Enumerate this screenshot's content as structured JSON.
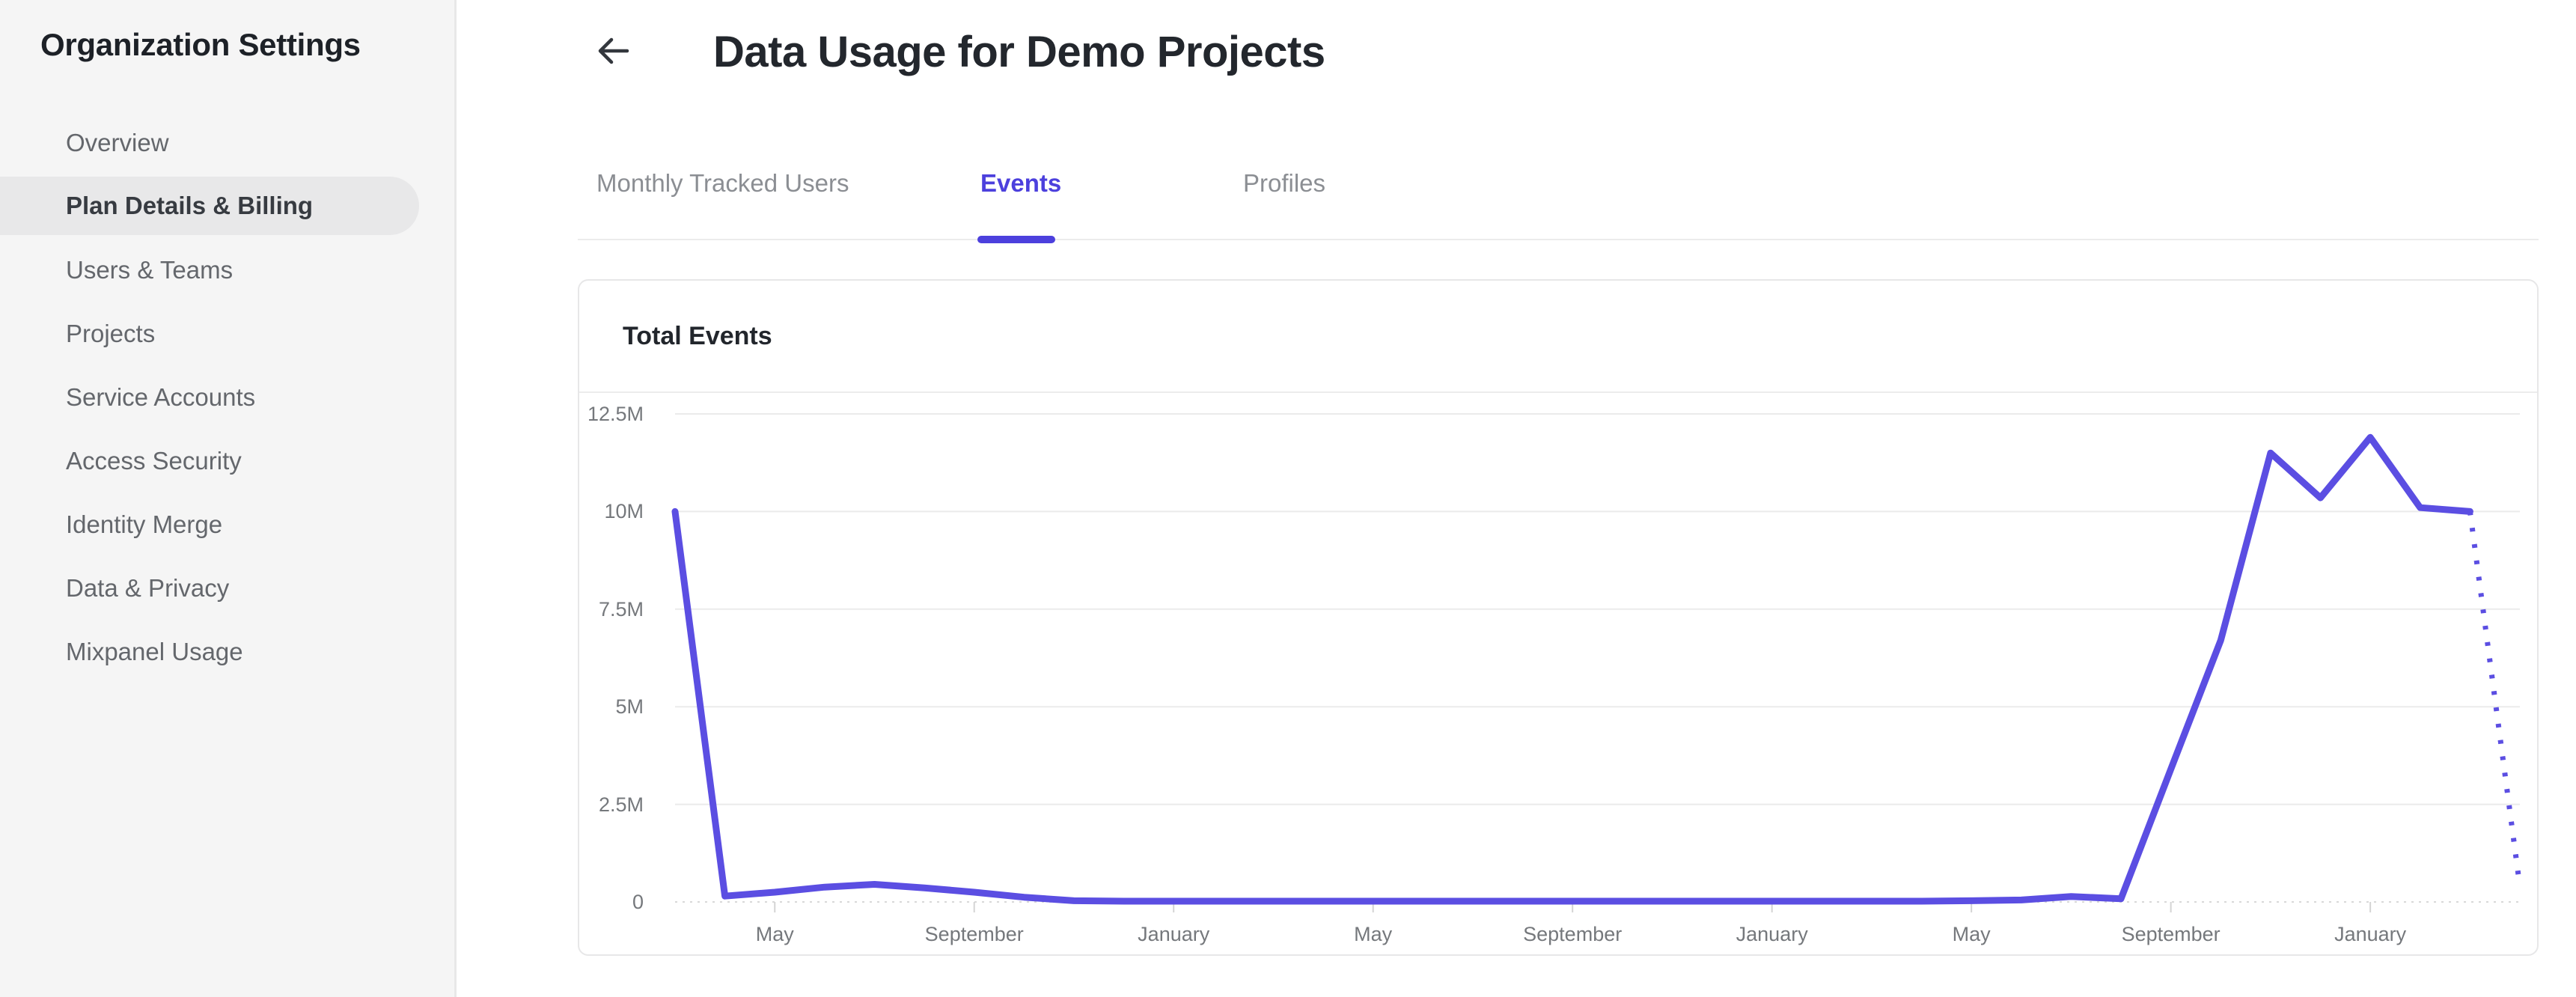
{
  "sidebar": {
    "title": "Organization Settings",
    "items": [
      {
        "label": "Overview",
        "selected": false
      },
      {
        "label": "Plan Details & Billing",
        "selected": true
      },
      {
        "label": "Users & Teams",
        "selected": false
      },
      {
        "label": "Projects",
        "selected": false
      },
      {
        "label": "Service Accounts",
        "selected": false
      },
      {
        "label": "Access Security",
        "selected": false
      },
      {
        "label": "Identity Merge",
        "selected": false
      },
      {
        "label": "Data & Privacy",
        "selected": false
      },
      {
        "label": "Mixpanel Usage",
        "selected": false
      }
    ]
  },
  "header": {
    "back_icon": "left-arrow",
    "title": "Data Usage for Demo Projects"
  },
  "tabs": {
    "items": [
      {
        "label": "Monthly Tracked Users",
        "active": false
      },
      {
        "label": "Events",
        "active": true
      },
      {
        "label": "Profiles",
        "active": false
      }
    ]
  },
  "card": {
    "title": "Total Events"
  },
  "colors": {
    "accent_purple": "#4c40dd",
    "line_purple": "#5b4ee2",
    "gridline": "#ebebeb",
    "zero_line": "#d8d8d8",
    "tick": "#d4d4d4",
    "axis_text": "#75787c"
  },
  "chart_data": {
    "type": "line",
    "title": "Total Events",
    "series_name": "Total Events",
    "x_unit": "month",
    "x_start_month": "March",
    "values_millions": [
      10,
      0.15,
      0.25,
      0.38,
      0.45,
      0.36,
      0.25,
      0.12,
      0.03,
      0.02,
      0.02,
      0.02,
      0.02,
      0.02,
      0.02,
      0.02,
      0.02,
      0.02,
      0.02,
      0.02,
      0.02,
      0.02,
      0.02,
      0.02,
      0.02,
      0.02,
      0.03,
      0.05,
      0.14,
      0.08,
      3.4,
      6.7,
      11.5,
      10.35,
      11.9,
      10.1,
      10.0,
      0.4
    ],
    "last_point_dashed": true,
    "tick_indices": [
      2,
      6,
      10,
      14,
      18,
      22,
      26,
      30,
      34
    ],
    "tick_labels": [
      "May",
      "September",
      "January",
      "May",
      "September",
      "January",
      "May",
      "September",
      "January"
    ],
    "y_ticks": [
      {
        "label": "12.5M",
        "value": 12.5
      },
      {
        "label": "10M",
        "value": 10
      },
      {
        "label": "7.5M",
        "value": 7.5
      },
      {
        "label": "5M",
        "value": 5
      },
      {
        "label": "2.5M",
        "value": 2.5
      },
      {
        "label": "0",
        "value": 0
      }
    ],
    "ylim": [
      0,
      12.5
    ],
    "grid": "horizontal",
    "legend": "none"
  }
}
